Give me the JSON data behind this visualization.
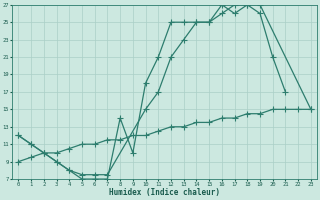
{
  "xlabel": "Humidex (Indice chaleur)",
  "bg_color": "#cce8e0",
  "line_color": "#2d7d6e",
  "grid_color": "#aacfc7",
  "xlim": [
    -0.5,
    23.5
  ],
  "ylim": [
    7,
    27
  ],
  "xticks": [
    0,
    1,
    2,
    3,
    4,
    5,
    6,
    7,
    8,
    9,
    10,
    11,
    12,
    13,
    14,
    15,
    16,
    17,
    18,
    19,
    20,
    21,
    22,
    23
  ],
  "yticks": [
    7,
    9,
    11,
    13,
    15,
    17,
    19,
    21,
    23,
    25,
    27
  ],
  "line1_x": [
    0,
    1,
    2,
    3,
    4,
    5,
    6,
    7,
    8,
    9,
    10,
    11,
    12,
    13,
    14,
    15,
    16,
    17,
    18,
    19,
    20,
    21
  ],
  "line1_y": [
    12,
    11,
    10,
    9,
    8,
    7,
    7,
    7,
    14,
    10,
    18,
    21,
    25,
    25,
    25,
    25,
    27,
    26,
    27,
    26,
    21,
    17
  ],
  "line2_x": [
    0,
    1,
    2,
    3,
    4,
    5,
    6,
    7,
    10,
    11,
    12,
    13,
    14,
    15,
    16,
    17,
    18,
    19,
    23
  ],
  "line2_y": [
    12,
    11,
    10,
    9,
    8,
    7.5,
    7.5,
    7.5,
    15,
    17,
    21,
    23,
    25,
    25,
    26,
    27,
    27,
    27,
    15
  ],
  "line3_x": [
    0,
    1,
    2,
    3,
    4,
    5,
    6,
    7,
    8,
    9,
    10,
    11,
    12,
    13,
    14,
    15,
    16,
    17,
    18,
    19,
    20,
    21,
    22,
    23
  ],
  "line3_y": [
    9,
    9.5,
    10,
    10,
    10.5,
    11,
    11,
    11.5,
    11.5,
    12,
    12,
    12.5,
    13,
    13,
    13.5,
    13.5,
    14,
    14,
    14.5,
    14.5,
    15,
    15,
    15,
    15
  ]
}
